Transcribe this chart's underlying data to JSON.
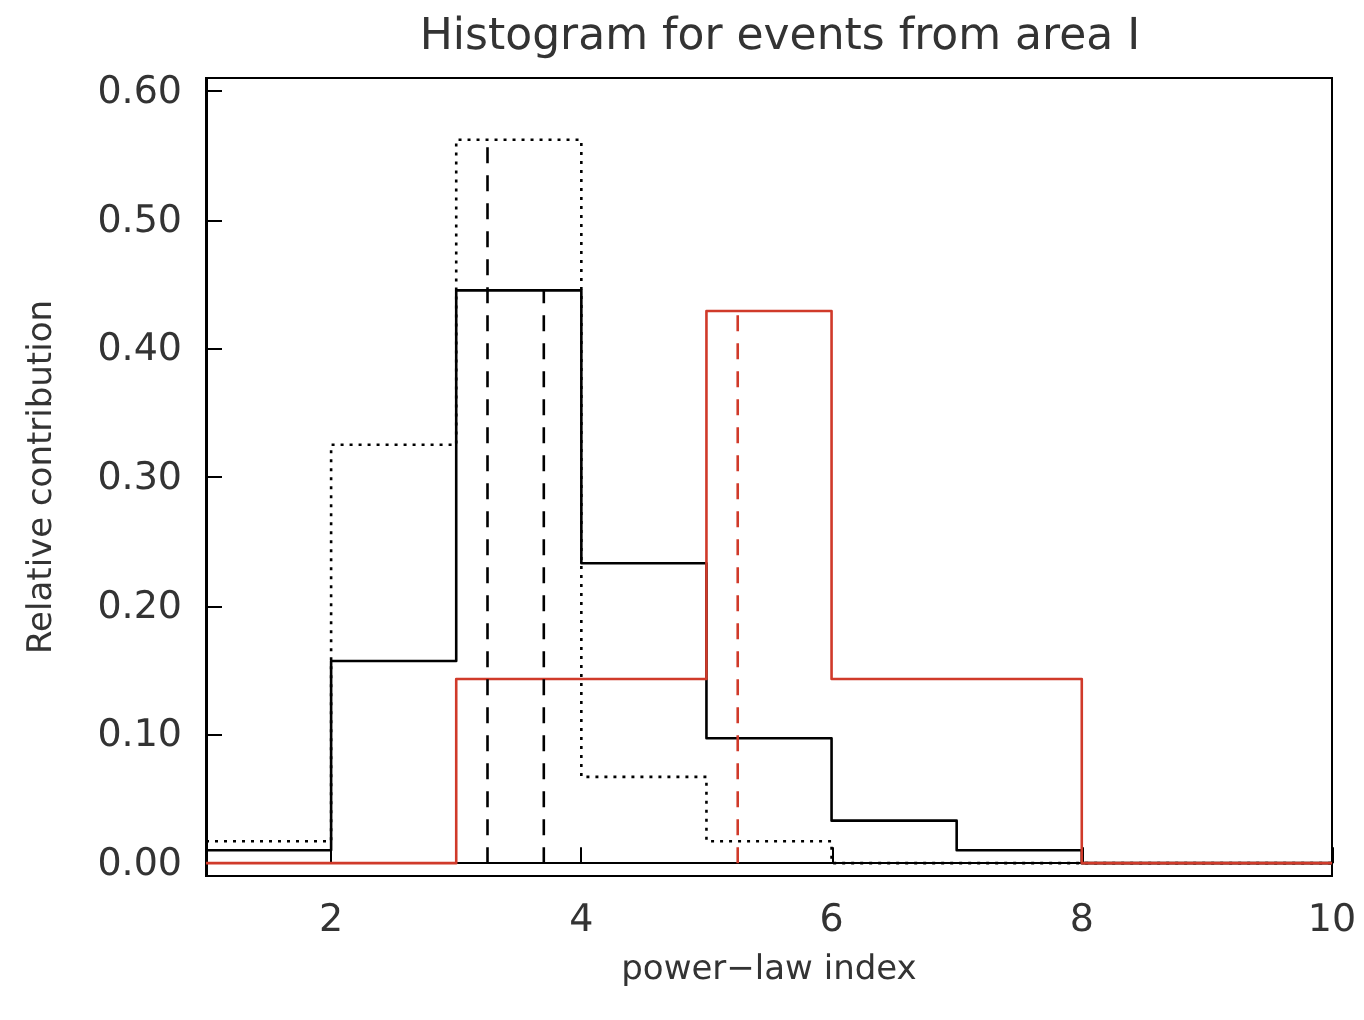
{
  "chart_data": {
    "type": "histogram",
    "title": "Histogram for events from area I",
    "xlabel": "power−law index",
    "ylabel": "Relative contribution",
    "xlim": [
      1,
      10
    ],
    "xticks": [
      2,
      4,
      6,
      8,
      10
    ],
    "ylim": [
      -0.01,
      0.61
    ],
    "yticks": [
      {
        "value": 0,
        "label": "0.00"
      },
      {
        "value": 0.1,
        "label": "0.10"
      },
      {
        "value": 0.2,
        "label": "0.20"
      },
      {
        "value": 0.3,
        "label": "0.30"
      },
      {
        "value": 0.4,
        "label": "0.40"
      },
      {
        "value": 0.5,
        "label": "0.50"
      },
      {
        "value": 0.6,
        "label": "0.60"
      }
    ],
    "series": [
      {
        "color": "#000000",
        "line_style": "dotted",
        "bins": [
          1,
          2,
          3,
          4,
          5,
          6,
          7,
          8,
          9,
          10
        ],
        "values": [
          0.017,
          0.325,
          0.562,
          0.067,
          0.017,
          0,
          0,
          0,
          0
        ]
      },
      {
        "color": "#000000",
        "line_style": "solid",
        "bins": [
          1,
          2,
          3,
          4,
          5,
          6,
          7,
          8,
          9,
          10
        ],
        "values": [
          0.01,
          0.157,
          0.445,
          0.233,
          0.097,
          0.033,
          0.01,
          0,
          0
        ]
      },
      {
        "color": "#d03a2a",
        "line_style": "solid",
        "bins": [
          1,
          2,
          3,
          4,
          5,
          6,
          7,
          8,
          9,
          10
        ],
        "values": [
          0,
          0,
          0.143,
          0.143,
          0.429,
          0.143,
          0.143,
          0,
          0
        ]
      },
      {
        "type": "line",
        "color": "#000000",
        "line_style": "dashed",
        "x": [
          3.25,
          3.25
        ],
        "values": [
          0,
          0.562
        ]
      },
      {
        "type": "line",
        "color": "#000000",
        "line_style": "dashed",
        "x": [
          3.7,
          3.7
        ],
        "values": [
          0,
          0.445
        ]
      },
      {
        "type": "line",
        "color": "#d03a2a",
        "line_style": "dashed",
        "x": [
          5.25,
          5.25
        ],
        "values": [
          0,
          0.429
        ]
      }
    ]
  }
}
